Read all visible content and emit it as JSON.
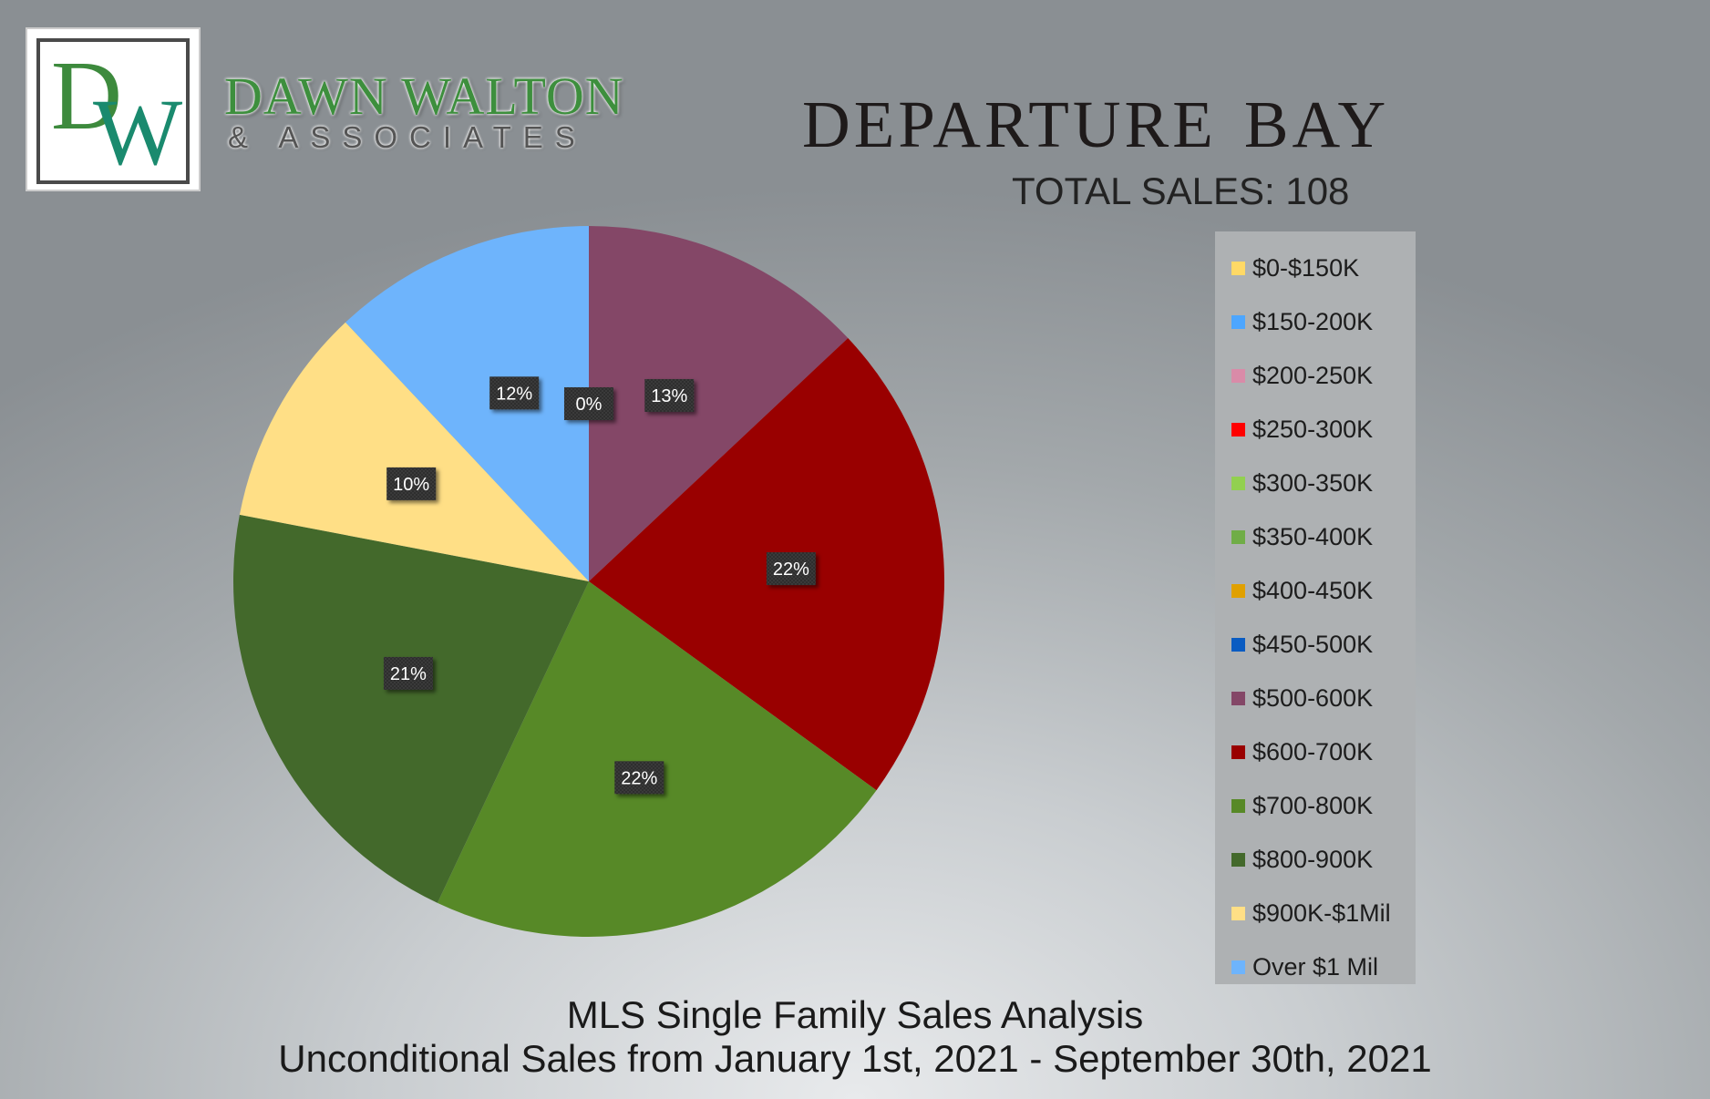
{
  "brand": {
    "logo_letters": "DW",
    "name": "DAWN WALTON",
    "subname": "& ASSOCIATES"
  },
  "header": {
    "title": "Departure Bay",
    "total_sales": "TOTAL SALES: 108"
  },
  "footer": {
    "line1": "MLS Single Family Sales Analysis",
    "line2": "Unconditional Sales from January 1st, 2021 - September 30th, 2021"
  },
  "chart_data": {
    "type": "pie",
    "title": "",
    "start_angle_deg": 0,
    "direction": "clockwise",
    "legend_position": "right",
    "slices": [
      {
        "label": "$0-$150K",
        "value": 0,
        "color": "#ffd966",
        "data_label": ""
      },
      {
        "label": "$150-200K",
        "value": 0,
        "color": "#4da6ff",
        "data_label": ""
      },
      {
        "label": "$200-250K",
        "value": 0,
        "color": "#d98ba8",
        "data_label": ""
      },
      {
        "label": "$250-300K",
        "value": 0,
        "color": "#ff0000",
        "data_label": ""
      },
      {
        "label": "$300-350K",
        "value": 0,
        "color": "#92d050",
        "data_label": ""
      },
      {
        "label": "$350-400K",
        "value": 0,
        "color": "#70ad47",
        "data_label": ""
      },
      {
        "label": "$400-450K",
        "value": 0,
        "color": "#e0a000",
        "data_label": ""
      },
      {
        "label": "$450-500K",
        "value": 0,
        "color": "#0a5cc2",
        "data_label": "0%"
      },
      {
        "label": "$500-600K",
        "value": 13,
        "color": "#844767",
        "data_label": "13%"
      },
      {
        "label": "$600-700K",
        "value": 22,
        "color": "#990000",
        "data_label": "22%"
      },
      {
        "label": "$700-800K",
        "value": 22,
        "color": "#578927",
        "data_label": "22%"
      },
      {
        "label": "$800-900K",
        "value": 21,
        "color": "#43692b",
        "data_label": "21%"
      },
      {
        "label": "$900K-$1Mil",
        "value": 10,
        "color": "#ffdf86",
        "data_label": "10%"
      },
      {
        "label": "Over $1 Mil",
        "value": 12,
        "color": "#6eb4fc",
        "data_label": "12%"
      }
    ]
  }
}
